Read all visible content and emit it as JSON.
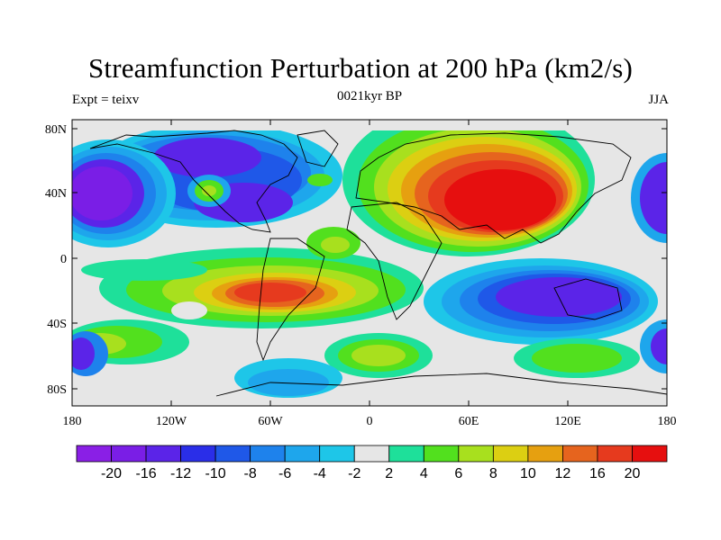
{
  "title": "Streamfunction Perturbation at 200 hPa (km2/s)",
  "left_label": "Expt = teixv",
  "center_label": "0021kyr BP",
  "right_label": "JJA",
  "lat_ticks": [
    "80N",
    "40N",
    "0",
    "40S",
    "80S"
  ],
  "lon_ticks": [
    "180",
    "120W",
    "60W",
    "0",
    "60E",
    "120E",
    "180"
  ],
  "colorbar": {
    "labels": [
      "-20",
      "-16",
      "-12",
      "-10",
      "-8",
      "-6",
      "-4",
      "-2",
      "2",
      "4",
      "6",
      "8",
      "10",
      "12",
      "16",
      "20"
    ],
    "colors": [
      "#8a1fe6",
      "#7a1ee6",
      "#5b24e8",
      "#2a2ee8",
      "#1f58e8",
      "#1e82ec",
      "#1ea6ec",
      "#1ec6e8",
      "#e6e6e6",
      "#1ee09a",
      "#52e01e",
      "#a8e01e",
      "#dccf12",
      "#e6a010",
      "#e6641e",
      "#e63a1e",
      "#e60f0f"
    ]
  }
}
